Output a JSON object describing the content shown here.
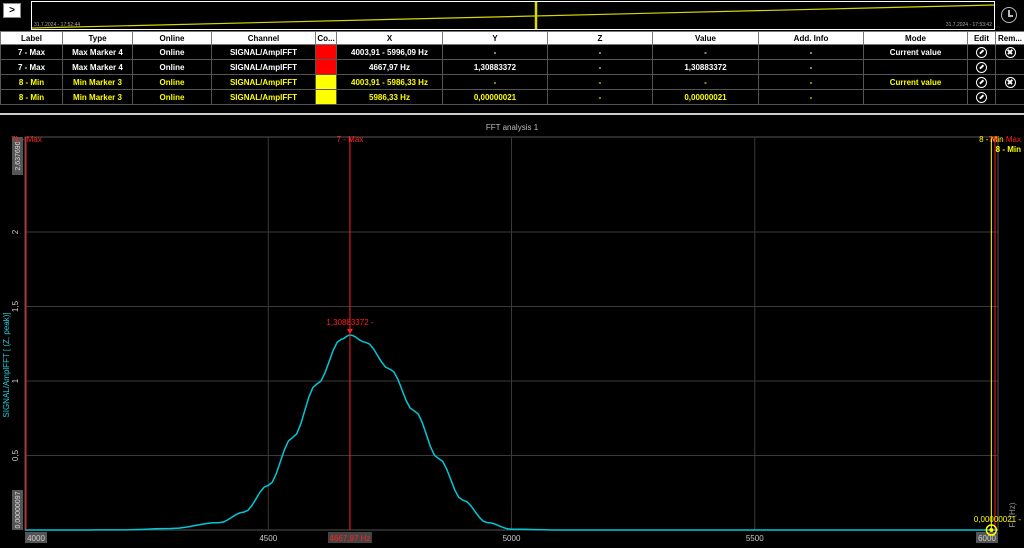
{
  "topbar": {
    "expand_label": ">",
    "timeline_start": "31.7.2024 - 17:52:44",
    "timeline_end": "31.7.2024 - 17:53:42"
  },
  "table": {
    "headers": [
      "Label",
      "Type",
      "Online",
      "Channel",
      "Co...",
      "X",
      "Y",
      "Z",
      "Value",
      "Add. Info",
      "Mode",
      "Edit",
      "Rem..."
    ],
    "rows": [
      {
        "label": "7 - Max",
        "type": "Max Marker 4",
        "online": "Online",
        "channel": "SIGNAL/AmplFFT",
        "color": "#ff0000",
        "x": "4003,91 - 5996,09 Hz",
        "y": "-",
        "z": "-",
        "value": "-",
        "add_info": "-",
        "mode": "Current value",
        "removable": true,
        "style": "max"
      },
      {
        "label": "7 - Max",
        "type": "Max Marker 4",
        "online": "Online",
        "channel": "SIGNAL/AmplFFT",
        "color": "#ff0000",
        "x": "4667,97 Hz",
        "y": "1,30883372",
        "z": "-",
        "value": "1,30883372",
        "add_info": "-",
        "mode": "",
        "removable": false,
        "style": "max"
      },
      {
        "label": "8 - Min",
        "type": "Min Marker 3",
        "online": "Online",
        "channel": "SIGNAL/AmplFFT",
        "color": "#ffff00",
        "x": "4003,91 - 5986,33 Hz",
        "y": "-",
        "z": "-",
        "value": "-",
        "add_info": "-",
        "mode": "Current value",
        "removable": true,
        "style": "min"
      },
      {
        "label": "8 - Min",
        "type": "Min Marker 3",
        "online": "Online",
        "channel": "SIGNAL/AmplFFT",
        "color": "#ffff00",
        "x": "5986,33 Hz",
        "y": "0,00000021",
        "z": "-",
        "value": "0,00000021",
        "add_info": "-",
        "mode": "",
        "removable": false,
        "style": "min"
      }
    ]
  },
  "chart_data": {
    "type": "line",
    "title": "FFT analysis 1",
    "ylabel": "SIGNAL/AmplFFT [ (Z, peak)]",
    "xlabel": "Fr (Hz)",
    "xlim": [
      4000,
      6000
    ],
    "ylim": [
      9.7e-07,
      2.63769
    ],
    "x_ticks": [
      "4000",
      "4500",
      "5000",
      "5500",
      "6000"
    ],
    "y_ticks": [
      "0,5",
      "1",
      "1,5",
      "2"
    ],
    "y_min_label": "0,00000097",
    "y_max_label": "2,637690",
    "grid": true,
    "series": [
      {
        "color": "#00c8d8",
        "x": [
          4000,
          4100,
          4200,
          4300,
          4400,
          4450,
          4500,
          4550,
          4600,
          4650,
          4668,
          4700,
          4750,
          4800,
          4850,
          4900,
          4950,
          5000,
          5100,
          5200,
          5400,
          5600,
          5800,
          5986,
          6000
        ],
        "y": [
          0,
          0,
          0.001,
          0.01,
          0.05,
          0.12,
          0.3,
          0.62,
          0.98,
          1.28,
          1.3088,
          1.26,
          1.08,
          0.8,
          0.48,
          0.2,
          0.05,
          0.005,
          0,
          0,
          0,
          0,
          0,
          2.1e-07,
          0
        ]
      }
    ],
    "markers": [
      {
        "name": "7 - Max",
        "x": 4667.97,
        "y": 1.30883372,
        "color": "#ff2020",
        "value_label": "1,30883372 -",
        "x_label": "4667,97 Hz"
      },
      {
        "name": "8 - Min",
        "x": 5986.33,
        "y": 2.1e-07,
        "color": "#ffff00",
        "value_label": "0,00000021 -",
        "x_label": ""
      }
    ],
    "range_labels": [
      {
        "text": "7L - Max",
        "color": "#ff2020"
      },
      {
        "text": "7R - Max",
        "color": "#ff2020"
      },
      {
        "text": "8 - Min",
        "color": "#ffff00"
      }
    ]
  }
}
